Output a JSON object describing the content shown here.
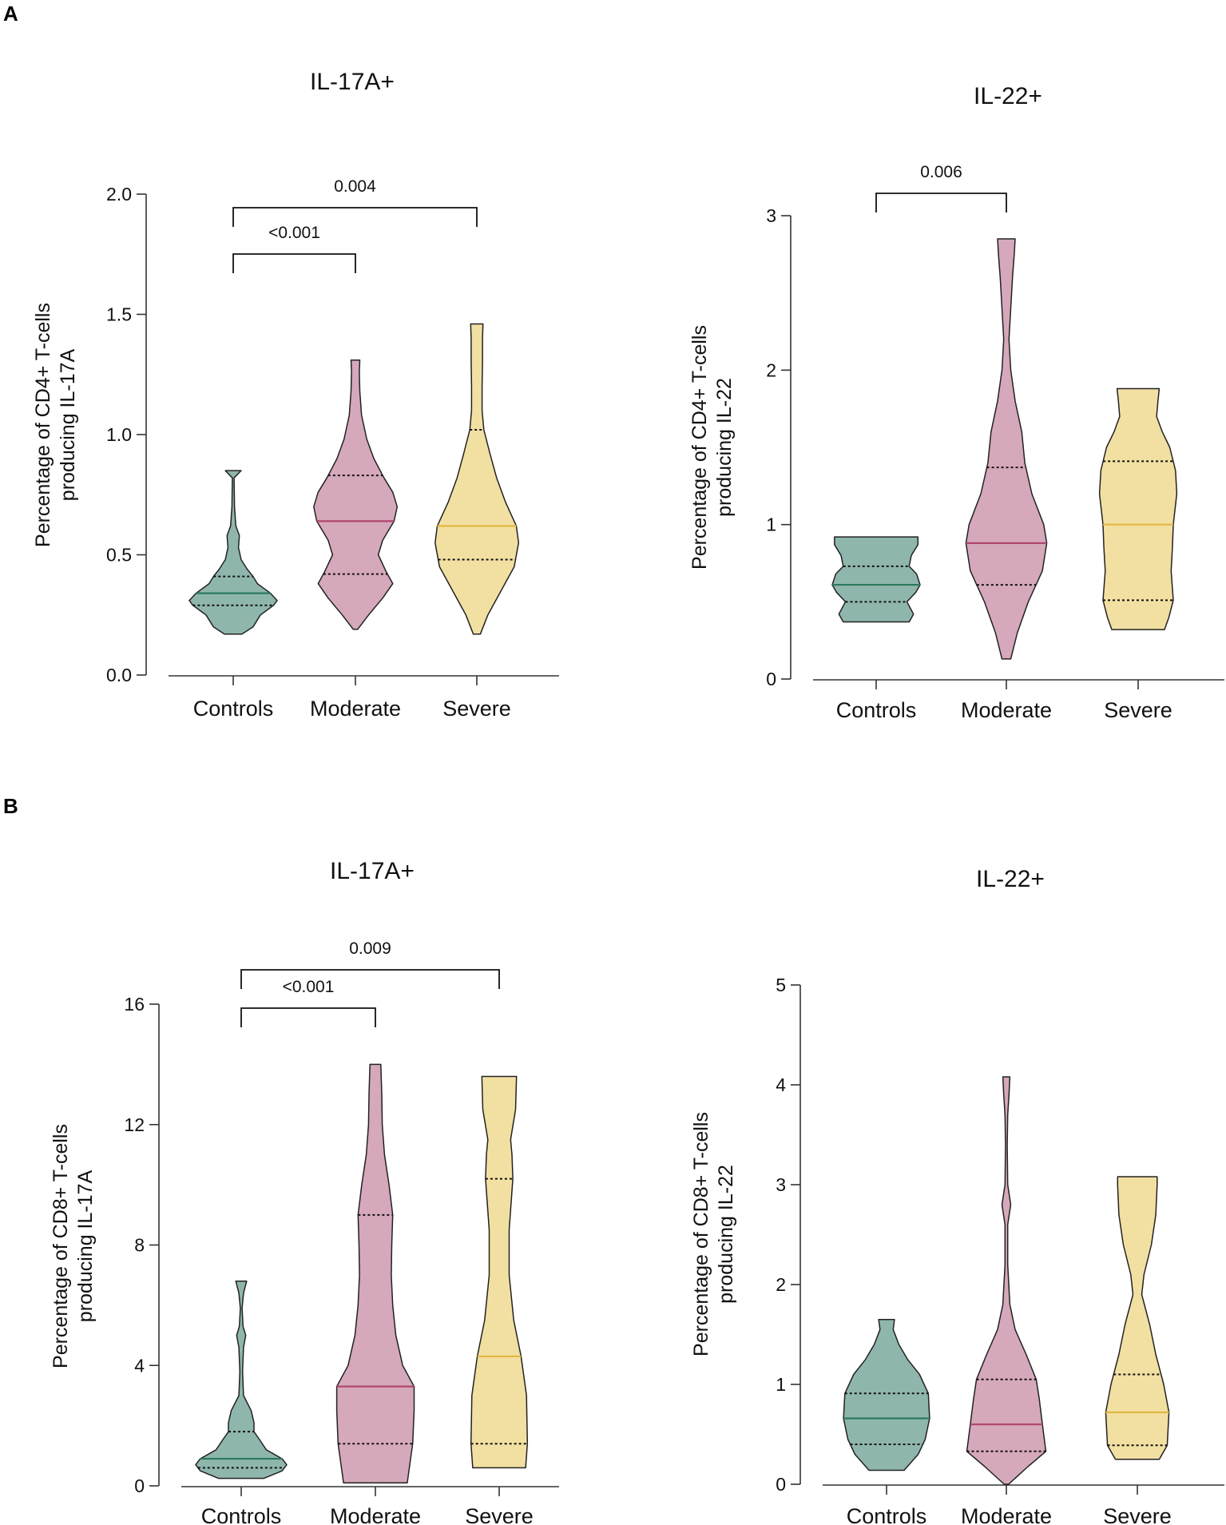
{
  "panels": [
    {
      "letter": "A"
    },
    {
      "letter": "B"
    }
  ],
  "colors": {
    "Controls": "#8fb6ad",
    "Moderate": "#d5a8bb",
    "Severe": "#f2e0a2",
    "Controls_median": "#2a7a5e",
    "Moderate_median": "#b0466e",
    "Severe_median": "#e3b742",
    "outline": "#222222"
  },
  "chart_data": [
    {
      "type": "violin",
      "panel": "A",
      "title": "IL-17A+",
      "ylabel_lines": [
        "Percentage of CD4+ T-cells",
        "producing IL-17A"
      ],
      "categories": [
        "Controls",
        "Moderate",
        "Severe"
      ],
      "ylim": [
        0,
        2.0
      ],
      "yticks": [
        0.0,
        0.5,
        1.0,
        1.5,
        2.0
      ],
      "ytick_labels": [
        "0.0",
        "0.5",
        "1.0",
        "1.5",
        "2.0"
      ],
      "series": [
        {
          "name": "Controls",
          "min": 0.17,
          "q1": 0.29,
          "median": 0.34,
          "q3": 0.41,
          "max": 0.85,
          "profile": [
            [
              0.17,
              0.2
            ],
            [
              0.2,
              0.45
            ],
            [
              0.25,
              0.62
            ],
            [
              0.29,
              0.92
            ],
            [
              0.31,
              1.0
            ],
            [
              0.34,
              0.85
            ],
            [
              0.38,
              0.55
            ],
            [
              0.41,
              0.45
            ],
            [
              0.44,
              0.32
            ],
            [
              0.48,
              0.18
            ],
            [
              0.53,
              0.12
            ],
            [
              0.58,
              0.14
            ],
            [
              0.62,
              0.06
            ],
            [
              0.7,
              0.03
            ],
            [
              0.82,
              0.02
            ],
            [
              0.85,
              0.18
            ]
          ]
        },
        {
          "name": "Moderate",
          "min": 0.19,
          "q1": 0.42,
          "median": 0.64,
          "q3": 0.83,
          "max": 1.31,
          "profile": [
            [
              0.19,
              0.05
            ],
            [
              0.25,
              0.3
            ],
            [
              0.32,
              0.62
            ],
            [
              0.38,
              0.85
            ],
            [
              0.43,
              0.7
            ],
            [
              0.5,
              0.52
            ],
            [
              0.56,
              0.62
            ],
            [
              0.64,
              0.88
            ],
            [
              0.7,
              0.95
            ],
            [
              0.76,
              0.85
            ],
            [
              0.82,
              0.65
            ],
            [
              0.9,
              0.42
            ],
            [
              0.98,
              0.26
            ],
            [
              1.08,
              0.14
            ],
            [
              1.18,
              0.1
            ],
            [
              1.26,
              0.09
            ],
            [
              1.31,
              0.1
            ]
          ]
        },
        {
          "name": "Severe",
          "min": 0.17,
          "q1": 0.48,
          "median": 0.62,
          "q3": 1.02,
          "max": 1.46,
          "profile": [
            [
              0.17,
              0.08
            ],
            [
              0.25,
              0.25
            ],
            [
              0.35,
              0.55
            ],
            [
              0.45,
              0.85
            ],
            [
              0.55,
              0.95
            ],
            [
              0.62,
              0.9
            ],
            [
              0.72,
              0.65
            ],
            [
              0.82,
              0.45
            ],
            [
              0.92,
              0.3
            ],
            [
              1.02,
              0.16
            ],
            [
              1.1,
              0.12
            ],
            [
              1.2,
              0.12
            ],
            [
              1.3,
              0.13
            ],
            [
              1.4,
              0.13
            ],
            [
              1.46,
              0.14
            ]
          ]
        }
      ],
      "brackets": [
        {
          "from": "Controls",
          "to": "Moderate",
          "label": "<0.001",
          "level": 1
        },
        {
          "from": "Controls",
          "to": "Severe",
          "label": "0.004",
          "level": 2
        }
      ]
    },
    {
      "type": "violin",
      "panel": "A",
      "title": "IL-22+",
      "ylabel_lines": [
        "Percentage of CD4+ T-cells",
        "producing IL-22"
      ],
      "categories": [
        "Controls",
        "Moderate",
        "Severe"
      ],
      "ylim": [
        0,
        3
      ],
      "yticks": [
        0,
        1,
        2,
        3
      ],
      "ytick_labels": [
        "0",
        "1",
        "2",
        "3"
      ],
      "series": [
        {
          "name": "Controls",
          "min": 0.37,
          "q1": 0.5,
          "median": 0.61,
          "q3": 0.73,
          "max": 0.92,
          "profile": [
            [
              0.37,
              0.75
            ],
            [
              0.42,
              0.85
            ],
            [
              0.5,
              0.7
            ],
            [
              0.56,
              0.9
            ],
            [
              0.61,
              1.0
            ],
            [
              0.68,
              0.92
            ],
            [
              0.73,
              0.75
            ],
            [
              0.8,
              0.8
            ],
            [
              0.87,
              0.95
            ],
            [
              0.92,
              0.95
            ]
          ]
        },
        {
          "name": "Moderate",
          "min": 0.13,
          "q1": 0.61,
          "median": 0.88,
          "q3": 1.37,
          "max": 2.85,
          "profile": [
            [
              0.13,
              0.1
            ],
            [
              0.3,
              0.25
            ],
            [
              0.5,
              0.5
            ],
            [
              0.7,
              0.82
            ],
            [
              0.88,
              0.92
            ],
            [
              1.0,
              0.85
            ],
            [
              1.2,
              0.58
            ],
            [
              1.4,
              0.42
            ],
            [
              1.6,
              0.35
            ],
            [
              1.8,
              0.2
            ],
            [
              2.0,
              0.1
            ],
            [
              2.2,
              0.06
            ],
            [
              2.4,
              0.1
            ],
            [
              2.6,
              0.14
            ],
            [
              2.75,
              0.18
            ],
            [
              2.85,
              0.2
            ]
          ]
        },
        {
          "name": "Severe",
          "min": 0.32,
          "q1": 0.51,
          "median": 1.0,
          "q3": 1.41,
          "max": 1.88,
          "profile": [
            [
              0.32,
              0.6
            ],
            [
              0.4,
              0.7
            ],
            [
              0.51,
              0.8
            ],
            [
              0.7,
              0.75
            ],
            [
              0.85,
              0.78
            ],
            [
              1.0,
              0.8
            ],
            [
              1.2,
              0.88
            ],
            [
              1.35,
              0.85
            ],
            [
              1.5,
              0.72
            ],
            [
              1.6,
              0.55
            ],
            [
              1.7,
              0.42
            ],
            [
              1.8,
              0.45
            ],
            [
              1.88,
              0.48
            ]
          ]
        }
      ],
      "brackets": [
        {
          "from": "Controls",
          "to": "Moderate",
          "label": "0.006",
          "level": 1
        }
      ]
    },
    {
      "type": "violin",
      "panel": "B",
      "title": "IL-17A+",
      "ylabel_lines": [
        "Percentage of CD8+ T-cells",
        "producing IL-17A"
      ],
      "categories": [
        "Controls",
        "Moderate",
        "Severe"
      ],
      "ylim": [
        0,
        16
      ],
      "yticks": [
        0,
        4,
        8,
        12,
        16
      ],
      "ytick_labels": [
        "0",
        "4",
        "8",
        "12",
        "16"
      ],
      "series": [
        {
          "name": "Controls",
          "min": 0.25,
          "q1": 0.6,
          "median": 0.9,
          "q3": 1.8,
          "max": 6.8,
          "profile": [
            [
              0.25,
              0.5
            ],
            [
              0.5,
              0.9
            ],
            [
              0.7,
              1.0
            ],
            [
              0.9,
              0.9
            ],
            [
              1.2,
              0.55
            ],
            [
              1.5,
              0.42
            ],
            [
              1.8,
              0.28
            ],
            [
              2.1,
              0.28
            ],
            [
              2.5,
              0.22
            ],
            [
              3.0,
              0.05
            ],
            [
              3.8,
              0.03
            ],
            [
              4.6,
              0.05
            ],
            [
              5.0,
              0.1
            ],
            [
              5.3,
              0.04
            ],
            [
              5.9,
              0.02
            ],
            [
              6.4,
              0.05
            ],
            [
              6.8,
              0.12
            ]
          ]
        },
        {
          "name": "Moderate",
          "min": 0.1,
          "q1": 1.4,
          "median": 3.3,
          "q3": 9.0,
          "max": 14.0,
          "profile": [
            [
              0.1,
              0.7
            ],
            [
              1.4,
              0.82
            ],
            [
              2.5,
              0.85
            ],
            [
              3.3,
              0.85
            ],
            [
              4.0,
              0.6
            ],
            [
              5.0,
              0.45
            ],
            [
              6.0,
              0.38
            ],
            [
              7.0,
              0.35
            ],
            [
              8.0,
              0.36
            ],
            [
              9.0,
              0.38
            ],
            [
              10.0,
              0.3
            ],
            [
              11.0,
              0.2
            ],
            [
              12.0,
              0.15
            ],
            [
              13.0,
              0.14
            ],
            [
              14.0,
              0.12
            ]
          ]
        },
        {
          "name": "Severe",
          "min": 0.6,
          "q1": 1.4,
          "median": 4.3,
          "q3": 10.2,
          "max": 13.6,
          "profile": [
            [
              0.6,
              0.58
            ],
            [
              1.4,
              0.62
            ],
            [
              3.0,
              0.6
            ],
            [
              4.3,
              0.48
            ],
            [
              5.5,
              0.32
            ],
            [
              7.0,
              0.22
            ],
            [
              8.5,
              0.22
            ],
            [
              10.2,
              0.3
            ],
            [
              11.0,
              0.28
            ],
            [
              11.5,
              0.25
            ],
            [
              12.5,
              0.36
            ],
            [
              13.6,
              0.38
            ]
          ]
        }
      ],
      "brackets": [
        {
          "from": "Controls",
          "to": "Moderate",
          "label": "<0.001",
          "level": 1
        },
        {
          "from": "Controls",
          "to": "Severe",
          "label": "0.009",
          "level": 2
        }
      ]
    },
    {
      "type": "violin",
      "panel": "B",
      "title": "IL-22+",
      "ylabel_lines": [
        "Percentage of CD8+ T-cells",
        "producing IL-22"
      ],
      "categories": [
        "Controls",
        "Moderate",
        "Severe"
      ],
      "ylim": [
        0,
        5
      ],
      "yticks": [
        0,
        1,
        2,
        3,
        4,
        5
      ],
      "ytick_labels": [
        "0",
        "1",
        "2",
        "3",
        "4",
        "5"
      ],
      "series": [
        {
          "name": "Controls",
          "min": 0.14,
          "q1": 0.4,
          "median": 0.66,
          "q3": 0.91,
          "max": 1.65,
          "profile": [
            [
              0.14,
              0.4
            ],
            [
              0.3,
              0.72
            ],
            [
              0.45,
              0.88
            ],
            [
              0.66,
              0.98
            ],
            [
              0.91,
              0.95
            ],
            [
              1.1,
              0.75
            ],
            [
              1.25,
              0.48
            ],
            [
              1.4,
              0.28
            ],
            [
              1.55,
              0.15
            ],
            [
              1.65,
              0.18
            ]
          ]
        },
        {
          "name": "Moderate",
          "min": 0.0,
          "q1": 0.33,
          "median": 0.6,
          "q3": 1.05,
          "max": 4.08,
          "profile": [
            [
              0.0,
              0.05
            ],
            [
              0.18,
              0.5
            ],
            [
              0.33,
              0.9
            ],
            [
              0.6,
              0.82
            ],
            [
              0.85,
              0.75
            ],
            [
              1.05,
              0.68
            ],
            [
              1.3,
              0.45
            ],
            [
              1.55,
              0.2
            ],
            [
              1.8,
              0.08
            ],
            [
              2.2,
              0.03
            ],
            [
              2.6,
              0.03
            ],
            [
              2.8,
              0.1
            ],
            [
              3.0,
              0.03
            ],
            [
              3.4,
              0.02
            ],
            [
              3.7,
              0.03
            ],
            [
              3.9,
              0.06
            ],
            [
              4.08,
              0.08
            ]
          ]
        },
        {
          "name": "Severe",
          "min": 0.25,
          "q1": 0.39,
          "median": 0.72,
          "q3": 1.1,
          "max": 3.08,
          "profile": [
            [
              0.25,
              0.5
            ],
            [
              0.39,
              0.68
            ],
            [
              0.72,
              0.72
            ],
            [
              1.0,
              0.6
            ],
            [
              1.3,
              0.42
            ],
            [
              1.6,
              0.28
            ],
            [
              1.9,
              0.1
            ],
            [
              2.1,
              0.15
            ],
            [
              2.4,
              0.32
            ],
            [
              2.7,
              0.42
            ],
            [
              3.0,
              0.45
            ],
            [
              3.08,
              0.45
            ]
          ]
        }
      ],
      "brackets": []
    }
  ]
}
